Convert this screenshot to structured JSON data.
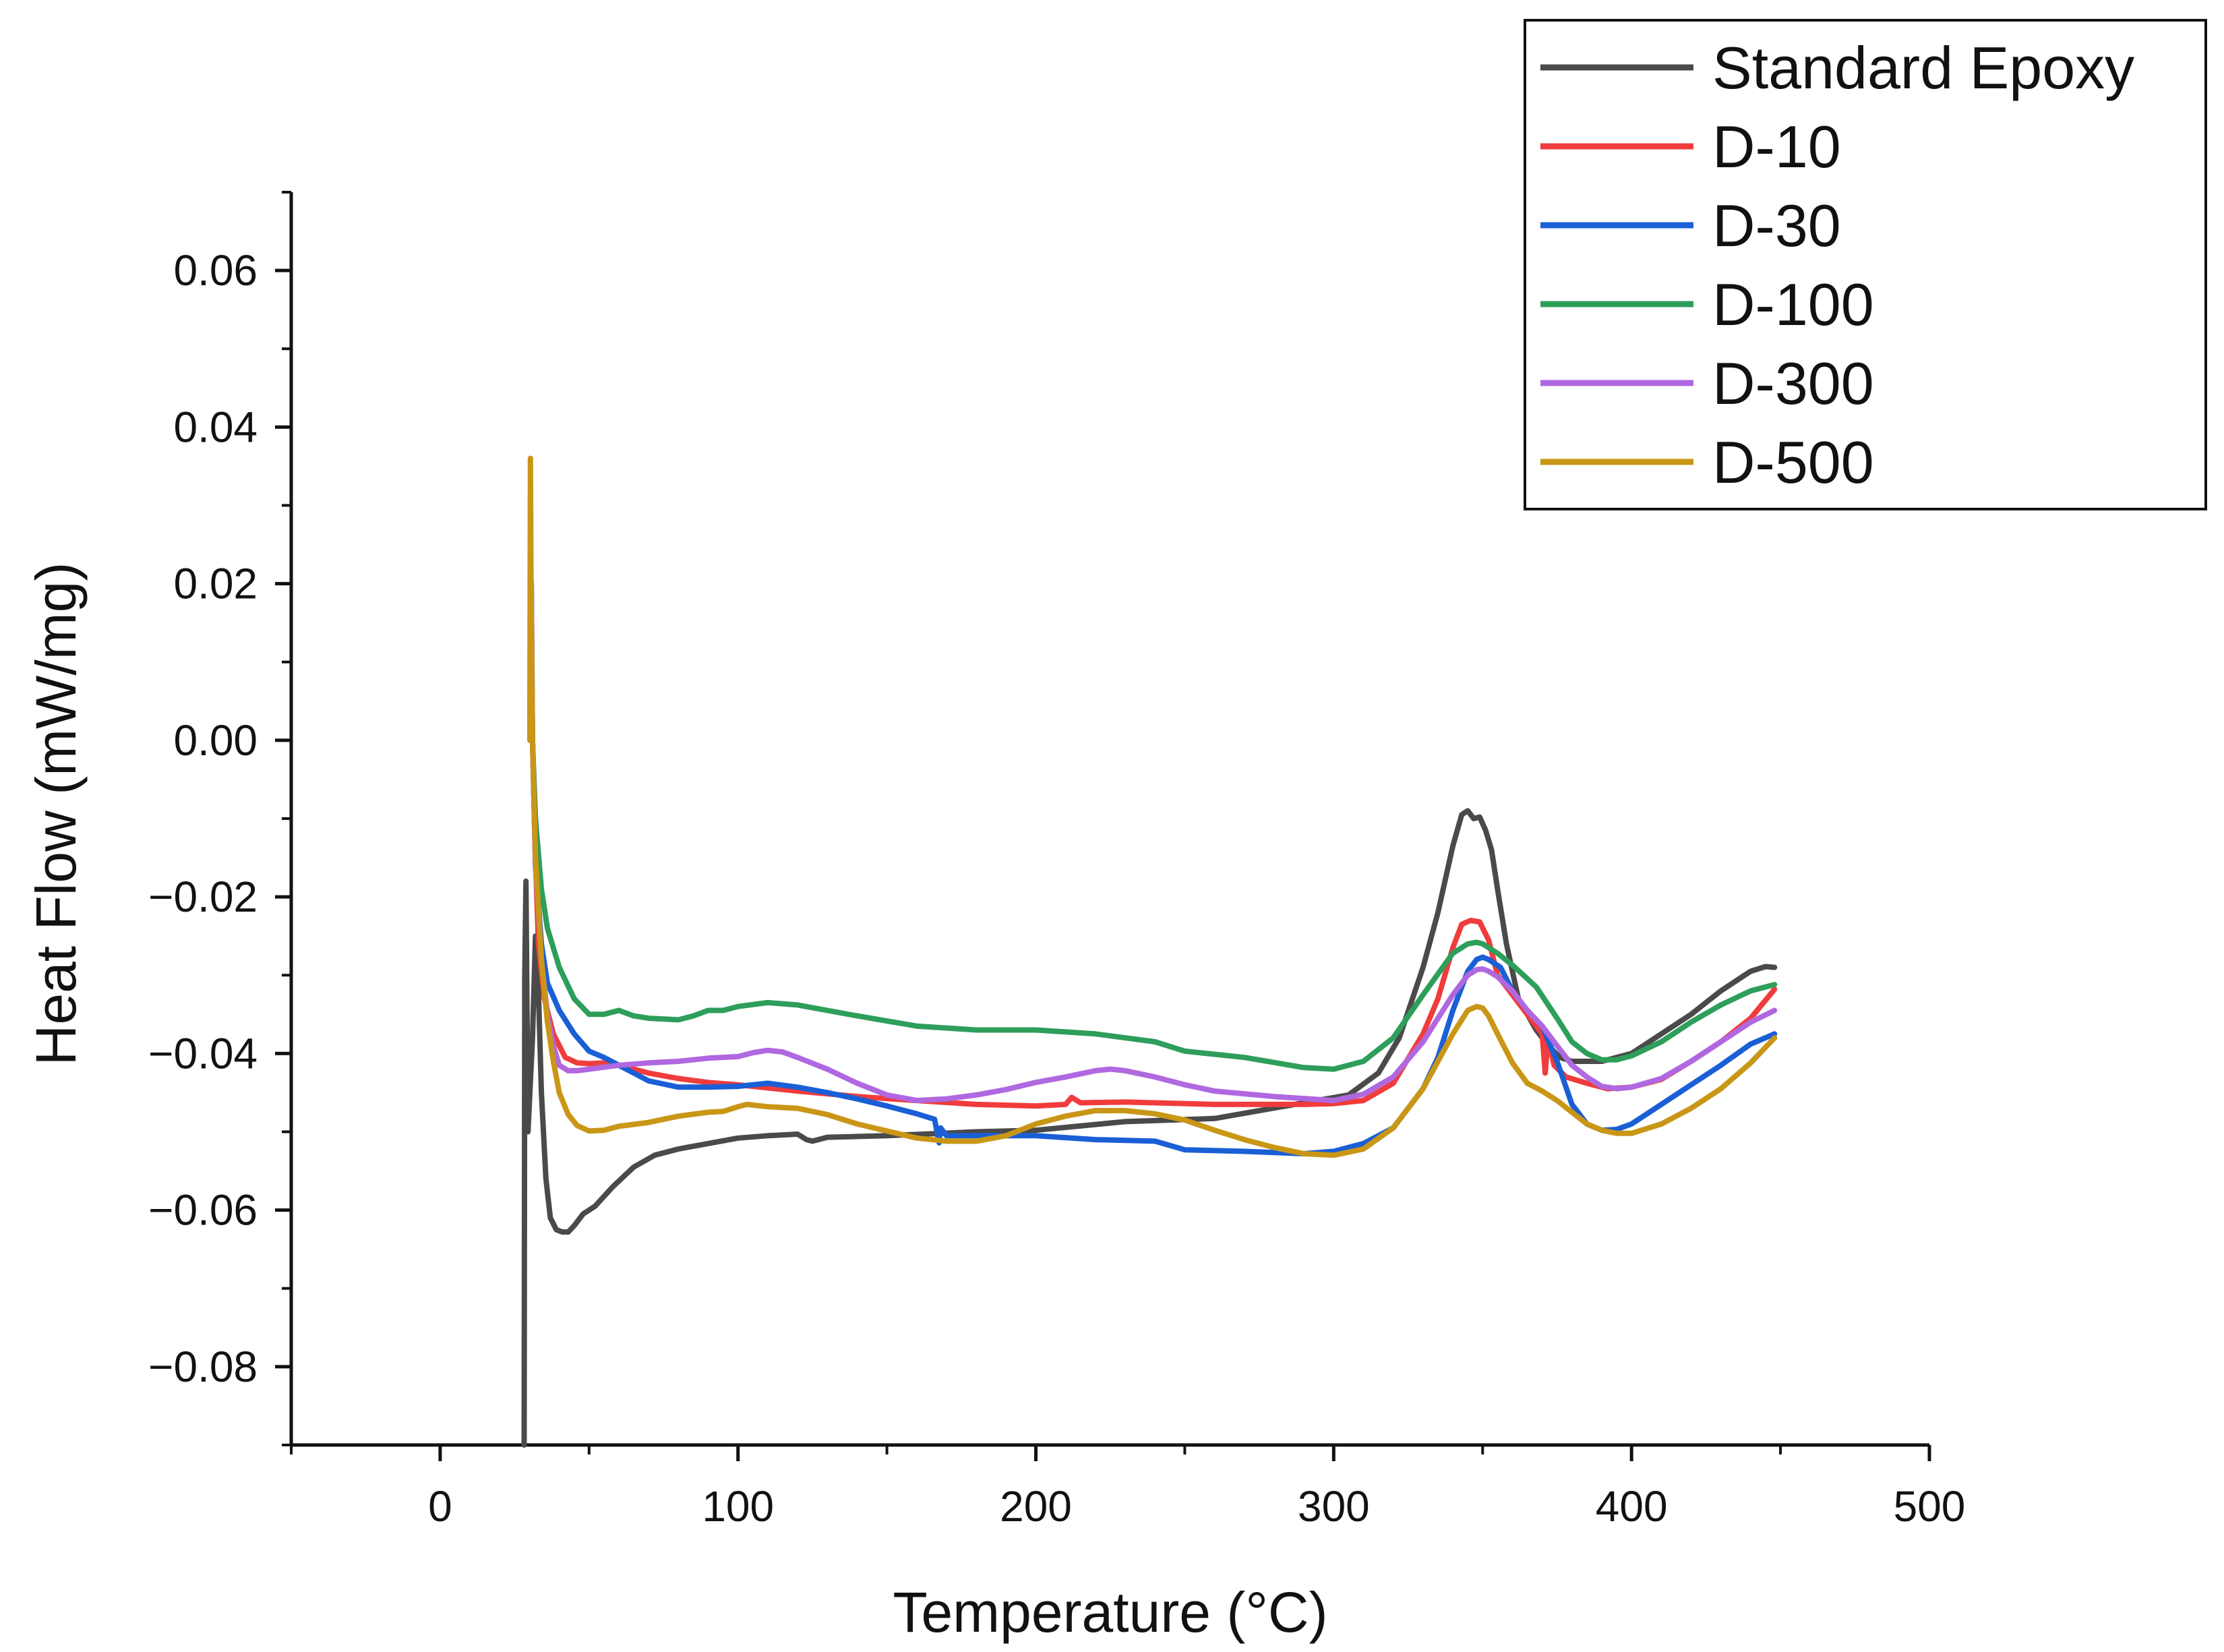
{
  "chart_data": {
    "type": "line",
    "title": "",
    "xlabel": "Temperature (°C)",
    "ylabel": "Heat Flow (mW/mg)",
    "xlim": [
      -50,
      500
    ],
    "ylim": [
      -0.09,
      0.07
    ],
    "x_ticks": [
      0,
      100,
      200,
      300,
      400,
      500
    ],
    "x_tick_labels": [
      "0",
      "100",
      "200",
      "300",
      "400",
      "500"
    ],
    "y_ticks": [
      -0.08,
      -0.06,
      -0.04,
      -0.02,
      0.0,
      0.02,
      0.04,
      0.06
    ],
    "y_tick_labels": [
      "−0.08",
      "−0.06",
      "−0.04",
      "−0.02",
      "0.00",
      "0.02",
      "0.04",
      "0.06"
    ],
    "grid": false,
    "legend_position": "top-right",
    "series": [
      {
        "name": "Standard Epoxy",
        "color": "#4a4a4a",
        "x": [
          28.2,
          28.4,
          28.8,
          29.5,
          31,
          32,
          33,
          34,
          35.5,
          37,
          39,
          41,
          43,
          45,
          48,
          52,
          58,
          65,
          72,
          80,
          90,
          100,
          110,
          120,
          123,
          125,
          130,
          150,
          180,
          200,
          230,
          260,
          290,
          305,
          315,
          322,
          330,
          335,
          340,
          343,
          345,
          347,
          349,
          351,
          353,
          355,
          358,
          362,
          368,
          372,
          376,
          380,
          385,
          390,
          395,
          400,
          410,
          420,
          430,
          440,
          445,
          448
        ],
        "y": [
          -0.09,
          -0.03,
          -0.018,
          -0.05,
          -0.038,
          -0.025,
          -0.032,
          -0.045,
          -0.056,
          -0.061,
          -0.0625,
          -0.0628,
          -0.0628,
          -0.062,
          -0.0605,
          -0.0595,
          -0.057,
          -0.0545,
          -0.053,
          -0.0522,
          -0.0515,
          -0.0508,
          -0.0505,
          -0.0503,
          -0.051,
          -0.0512,
          -0.0507,
          -0.0505,
          -0.05,
          -0.0498,
          -0.0487,
          -0.0483,
          -0.0463,
          -0.0453,
          -0.0425,
          -0.038,
          -0.029,
          -0.022,
          -0.0135,
          -0.0095,
          -0.009,
          -0.01,
          -0.0098,
          -0.0115,
          -0.014,
          -0.019,
          -0.026,
          -0.033,
          -0.037,
          -0.039,
          -0.0405,
          -0.041,
          -0.041,
          -0.041,
          -0.0405,
          -0.04,
          -0.0375,
          -0.035,
          -0.032,
          -0.0295,
          -0.0289,
          -0.029
        ]
      },
      {
        "name": "D-10",
        "color": "#f03c3c",
        "x": [
          30.2,
          30.5,
          31,
          32,
          33,
          35,
          38,
          42,
          46,
          50,
          55,
          60,
          70,
          80,
          90,
          100,
          120,
          140,
          160,
          180,
          200,
          210,
          212,
          215,
          230,
          260,
          290,
          300,
          310,
          320,
          330,
          335,
          340,
          343,
          346,
          349,
          352,
          355,
          360,
          365,
          368,
          370,
          371,
          372,
          374,
          378,
          385,
          392,
          400,
          410,
          420,
          430,
          440,
          448
        ],
        "y": [
          0.0015,
          0.019,
          0.0,
          -0.015,
          -0.026,
          -0.033,
          -0.0375,
          -0.0405,
          -0.0412,
          -0.0413,
          -0.0412,
          -0.0415,
          -0.0425,
          -0.0432,
          -0.0437,
          -0.044,
          -0.0448,
          -0.0455,
          -0.046,
          -0.0465,
          -0.0467,
          -0.0465,
          -0.0456,
          -0.0463,
          -0.0462,
          -0.0465,
          -0.0465,
          -0.0464,
          -0.046,
          -0.0438,
          -0.0375,
          -0.033,
          -0.0265,
          -0.0235,
          -0.023,
          -0.0232,
          -0.0255,
          -0.03,
          -0.0325,
          -0.035,
          -0.0365,
          -0.0375,
          -0.0425,
          -0.038,
          -0.0415,
          -0.043,
          -0.0438,
          -0.0445,
          -0.0443,
          -0.0433,
          -0.041,
          -0.0385,
          -0.0355,
          -0.0318
        ]
      },
      {
        "name": "D-30",
        "color": "#1a5fd6",
        "x": [
          30.3,
          30.6,
          31,
          32,
          34,
          36,
          40,
          45,
          50,
          55,
          60,
          70,
          80,
          90,
          100,
          110,
          120,
          130,
          140,
          150,
          160,
          166,
          167.5,
          168,
          170,
          180,
          200,
          220,
          240,
          250,
          270,
          290,
          300,
          310,
          320,
          330,
          335,
          340,
          345,
          348,
          350,
          352,
          356,
          360,
          365,
          370,
          375,
          380,
          385,
          390,
          395,
          400,
          410,
          420,
          430,
          440,
          448
        ],
        "y": [
          0.005,
          0.02,
          0.0,
          -0.016,
          -0.026,
          -0.031,
          -0.0345,
          -0.0375,
          -0.0397,
          -0.0405,
          -0.0415,
          -0.0435,
          -0.0443,
          -0.0443,
          -0.0442,
          -0.0438,
          -0.0443,
          -0.045,
          -0.0458,
          -0.0467,
          -0.0477,
          -0.0484,
          -0.0514,
          -0.0495,
          -0.0505,
          -0.0505,
          -0.0505,
          -0.051,
          -0.0512,
          -0.0523,
          -0.0525,
          -0.0528,
          -0.0525,
          -0.0515,
          -0.0495,
          -0.0445,
          -0.0405,
          -0.0345,
          -0.0295,
          -0.028,
          -0.0277,
          -0.028,
          -0.029,
          -0.032,
          -0.0345,
          -0.0365,
          -0.041,
          -0.0465,
          -0.049,
          -0.0498,
          -0.0497,
          -0.049,
          -0.0465,
          -0.044,
          -0.0415,
          -0.0388,
          -0.0375
        ]
      },
      {
        "name": "D-100",
        "color": "#2e9e5b",
        "x": [
          30.2,
          30.5,
          31,
          32,
          34,
          36,
          40,
          45,
          50,
          55,
          60,
          65,
          70,
          80,
          85,
          90,
          95,
          100,
          110,
          120,
          140,
          160,
          180,
          200,
          220,
          240,
          250,
          270,
          290,
          300,
          310,
          320,
          330,
          340,
          345,
          348,
          350,
          355,
          360,
          368,
          375,
          380,
          385,
          390,
          395,
          400,
          410,
          420,
          430,
          440,
          448
        ],
        "y": [
          0.003,
          0.013,
          0.0,
          -0.01,
          -0.019,
          -0.024,
          -0.029,
          -0.033,
          -0.035,
          -0.035,
          -0.0345,
          -0.0352,
          -0.0355,
          -0.0357,
          -0.0352,
          -0.0345,
          -0.0345,
          -0.034,
          -0.0335,
          -0.0338,
          -0.0352,
          -0.0365,
          -0.037,
          -0.037,
          -0.0375,
          -0.0385,
          -0.0397,
          -0.0405,
          -0.0418,
          -0.042,
          -0.041,
          -0.038,
          -0.0325,
          -0.0272,
          -0.026,
          -0.0258,
          -0.026,
          -0.0272,
          -0.0287,
          -0.0315,
          -0.0355,
          -0.0385,
          -0.04,
          -0.0408,
          -0.0408,
          -0.0403,
          -0.0385,
          -0.036,
          -0.0338,
          -0.032,
          -0.0312
        ]
      },
      {
        "name": "D-300",
        "color": "#b068e0",
        "x": [
          30.3,
          30.6,
          31,
          32,
          34,
          36,
          38,
          40,
          43,
          46,
          50,
          60,
          70,
          80,
          90,
          100,
          105,
          110,
          115,
          120,
          130,
          140,
          150,
          160,
          170,
          180,
          190,
          200,
          210,
          220,
          225,
          230,
          240,
          250,
          260,
          280,
          300,
          310,
          320,
          330,
          340,
          345,
          348,
          350,
          352,
          355,
          360,
          365,
          370,
          375,
          380,
          385,
          390,
          395,
          400,
          410,
          420,
          430,
          440,
          448
        ],
        "y": [
          0.005,
          0.02,
          0.0,
          -0.016,
          -0.028,
          -0.035,
          -0.039,
          -0.0415,
          -0.0422,
          -0.0422,
          -0.042,
          -0.0415,
          -0.0412,
          -0.041,
          -0.0406,
          -0.0404,
          -0.0399,
          -0.0396,
          -0.0398,
          -0.0405,
          -0.042,
          -0.0438,
          -0.0453,
          -0.046,
          -0.0458,
          -0.0453,
          -0.0446,
          -0.0437,
          -0.043,
          -0.0422,
          -0.042,
          -0.0422,
          -0.043,
          -0.044,
          -0.0448,
          -0.0455,
          -0.046,
          -0.0452,
          -0.043,
          -0.0385,
          -0.0325,
          -0.03,
          -0.0293,
          -0.0292,
          -0.0295,
          -0.0302,
          -0.032,
          -0.0345,
          -0.0365,
          -0.039,
          -0.0415,
          -0.043,
          -0.0442,
          -0.0445,
          -0.0443,
          -0.0432,
          -0.041,
          -0.0385,
          -0.036,
          -0.0345
        ]
      },
      {
        "name": "D-500",
        "color": "#c99616",
        "x": [
          30.1,
          30.3,
          30.5,
          31,
          32,
          34,
          36,
          38,
          40,
          43,
          46,
          50,
          55,
          60,
          70,
          80,
          90,
          95,
          100,
          103,
          110,
          120,
          130,
          140,
          160,
          170,
          180,
          190,
          200,
          210,
          220,
          230,
          240,
          250,
          260,
          270,
          280,
          290,
          300,
          310,
          320,
          330,
          340,
          345,
          348,
          350,
          352,
          355,
          360,
          365,
          370,
          375,
          380,
          385,
          390,
          395,
          400,
          410,
          420,
          430,
          440,
          448
        ],
        "y": [
          0.0,
          0.036,
          0.02,
          0.0,
          -0.015,
          -0.028,
          -0.036,
          -0.041,
          -0.045,
          -0.0478,
          -0.0492,
          -0.0499,
          -0.0498,
          -0.0493,
          -0.0488,
          -0.048,
          -0.0475,
          -0.0474,
          -0.0468,
          -0.0465,
          -0.0468,
          -0.047,
          -0.0478,
          -0.049,
          -0.0508,
          -0.0512,
          -0.0512,
          -0.0505,
          -0.049,
          -0.048,
          -0.0473,
          -0.0473,
          -0.0477,
          -0.0485,
          -0.0498,
          -0.051,
          -0.052,
          -0.0528,
          -0.053,
          -0.0522,
          -0.0495,
          -0.0445,
          -0.0375,
          -0.0345,
          -0.034,
          -0.0342,
          -0.0352,
          -0.0375,
          -0.0412,
          -0.0438,
          -0.0448,
          -0.046,
          -0.0475,
          -0.049,
          -0.0498,
          -0.0502,
          -0.0502,
          -0.049,
          -0.047,
          -0.0445,
          -0.0412,
          -0.038
        ]
      }
    ]
  }
}
